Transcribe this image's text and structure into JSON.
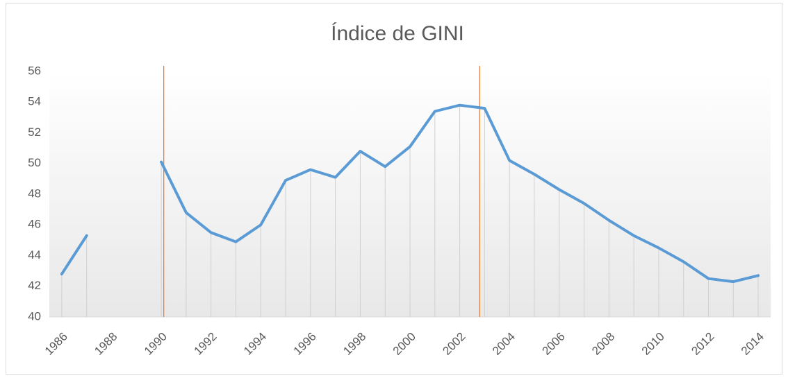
{
  "chart_data": {
    "type": "line",
    "title": "Índice de GINI",
    "categories": [
      "1986",
      null,
      "1988",
      null,
      "1990",
      null,
      "1992",
      null,
      "1994",
      null,
      "1996",
      null,
      "1998",
      null,
      "2000",
      null,
      "2002",
      null,
      "2004",
      null,
      "2006",
      null,
      "2008",
      null,
      "2010",
      null,
      "2012",
      null,
      "2014"
    ],
    "series": [
      {
        "name": "Índice de GINI",
        "color": "#5b9bd5",
        "values": [
          42.8,
          45.3,
          null,
          null,
          50.1,
          46.8,
          45.5,
          44.9,
          46.0,
          48.9,
          49.6,
          49.1,
          50.8,
          49.8,
          51.1,
          53.4,
          53.8,
          53.6,
          50.2,
          49.3,
          48.3,
          47.4,
          46.3,
          45.3,
          44.5,
          43.6,
          42.5,
          42.3,
          42.7
        ]
      }
    ],
    "ylim": [
      40,
      56
    ],
    "yticks": [
      40,
      42,
      44,
      46,
      48,
      50,
      52,
      54,
      56
    ],
    "drop_lines": true,
    "vlines": [
      {
        "x": 1990.1,
        "color": "#ed7d31"
      },
      {
        "x": 2002.8,
        "color": "#ed7d31"
      }
    ]
  }
}
